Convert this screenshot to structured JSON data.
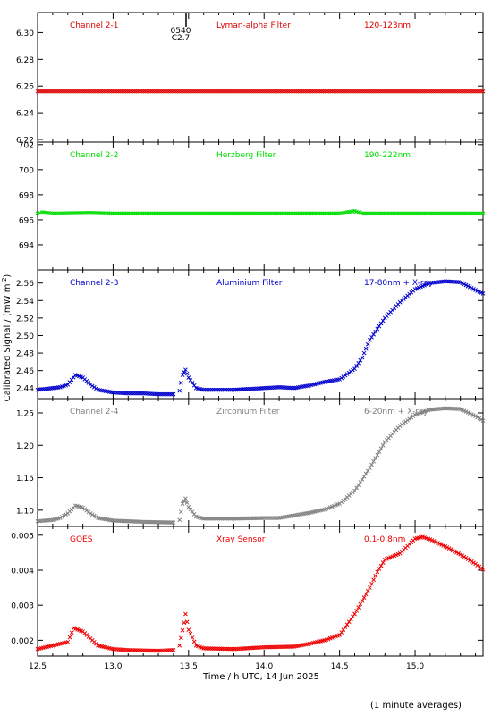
{
  "figure": {
    "ylabel_shared": "Calibrated Signal / (mW m",
    "ylabel_sup": "-2",
    "ylabel_close": ")",
    "xlabel": "Time / h UTC, 14 Jun 2025",
    "footnote": "(1 minute averages)",
    "marker_time": "05:40",
    "marker_top_label": "0540",
    "marker_sub_label": "C2.7"
  },
  "colors": {
    "channel_2_1": "#dd0000",
    "channel_2_2": "#00dd00",
    "channel_2_3": "#0000cc",
    "channel_2_4": "#808080",
    "goes": "#ee0000",
    "axes": "#000000"
  },
  "chart_data": [
    {
      "type": "scatter",
      "panel_label": "Channel 2-1",
      "filter": "Lyman-alpha Filter",
      "band": "120-123nm",
      "color_key": "channel_2_1",
      "ylim": [
        6.218,
        6.315
      ],
      "yticks": [
        6.22,
        6.24,
        6.26,
        6.28,
        6.3
      ],
      "ytick_labels": [
        "6.22",
        "6.24",
        "6.26",
        "6.28",
        "6.30"
      ],
      "xlim": [
        12.5,
        15.45
      ],
      "points": [
        [
          12.5,
          6.256
        ],
        [
          13.0,
          6.256
        ],
        [
          13.5,
          6.256
        ],
        [
          14.0,
          6.256
        ],
        [
          14.5,
          6.256
        ],
        [
          15.0,
          6.256
        ],
        [
          15.45,
          6.256
        ]
      ]
    },
    {
      "type": "scatter",
      "panel_label": "Channel 2-2",
      "filter": "Herzberg Filter",
      "band": "190-222nm",
      "color_key": "channel_2_2",
      "ylim": [
        692.0,
        702.2
      ],
      "yticks": [
        694,
        696,
        698,
        700,
        702
      ],
      "ytick_labels": [
        "694",
        "696",
        "698",
        "700",
        "702"
      ],
      "xlim": [
        12.5,
        15.45
      ],
      "points": [
        [
          12.5,
          696.5
        ],
        [
          12.53,
          696.6
        ],
        [
          12.6,
          696.5
        ],
        [
          12.85,
          696.55
        ],
        [
          13.0,
          696.5
        ],
        [
          13.5,
          696.5
        ],
        [
          14.0,
          696.5
        ],
        [
          14.5,
          696.5
        ],
        [
          14.6,
          696.7
        ],
        [
          14.65,
          696.5
        ],
        [
          15.0,
          696.5
        ],
        [
          15.45,
          696.5
        ]
      ]
    },
    {
      "type": "scatter",
      "panel_label": "Channel 2-3",
      "filter": "Aluminium Filter",
      "band": "17-80nm + X-ray",
      "color_key": "channel_2_3",
      "ylim": [
        2.428,
        2.575
      ],
      "yticks": [
        2.44,
        2.46,
        2.48,
        2.5,
        2.52,
        2.54,
        2.56
      ],
      "ytick_labels": [
        "2.44",
        "2.46",
        "2.48",
        "2.50",
        "2.52",
        "2.54",
        "2.56"
      ],
      "xlim": [
        12.5,
        15.45
      ],
      "points": [
        [
          12.5,
          2.438
        ],
        [
          12.6,
          2.44
        ],
        [
          12.65,
          2.441
        ],
        [
          12.7,
          2.444
        ],
        [
          12.75,
          2.455
        ],
        [
          12.8,
          2.452
        ],
        [
          12.85,
          2.444
        ],
        [
          12.9,
          2.438
        ],
        [
          13.0,
          2.435
        ],
        [
          13.1,
          2.434
        ],
        [
          13.2,
          2.434
        ],
        [
          13.3,
          2.433
        ],
        [
          13.4,
          2.433
        ],
        [
          13.44,
          2.437
        ],
        [
          13.46,
          2.455
        ],
        [
          13.48,
          2.461
        ],
        [
          13.5,
          2.452
        ],
        [
          13.55,
          2.44
        ],
        [
          13.6,
          2.438
        ],
        [
          13.8,
          2.438
        ],
        [
          14.0,
          2.44
        ],
        [
          14.1,
          2.441
        ],
        [
          14.2,
          2.44
        ],
        [
          14.3,
          2.443
        ],
        [
          14.4,
          2.447
        ],
        [
          14.5,
          2.45
        ],
        [
          14.6,
          2.462
        ],
        [
          14.65,
          2.475
        ],
        [
          14.7,
          2.495
        ],
        [
          14.8,
          2.52
        ],
        [
          14.9,
          2.538
        ],
        [
          15.0,
          2.553
        ],
        [
          15.1,
          2.56
        ],
        [
          15.2,
          2.562
        ],
        [
          15.3,
          2.561
        ],
        [
          15.4,
          2.552
        ],
        [
          15.45,
          2.548
        ]
      ]
    },
    {
      "type": "scatter",
      "panel_label": "Channel 2-4",
      "filter": "Zirconium Filter",
      "band": "6-20nm + X-ray",
      "color_key": "channel_2_4",
      "ylim": [
        1.075,
        1.272
      ],
      "yticks": [
        1.1,
        1.15,
        1.2,
        1.25
      ],
      "ytick_labels": [
        "1.10",
        "1.15",
        "1.20",
        "1.25"
      ],
      "xlim": [
        12.5,
        15.45
      ],
      "points": [
        [
          12.5,
          1.083
        ],
        [
          12.6,
          1.085
        ],
        [
          12.65,
          1.088
        ],
        [
          12.7,
          1.095
        ],
        [
          12.75,
          1.107
        ],
        [
          12.8,
          1.104
        ],
        [
          12.85,
          1.095
        ],
        [
          12.9,
          1.088
        ],
        [
          13.0,
          1.084
        ],
        [
          13.2,
          1.082
        ],
        [
          13.4,
          1.081
        ],
        [
          13.44,
          1.085
        ],
        [
          13.46,
          1.11
        ],
        [
          13.48,
          1.118
        ],
        [
          13.5,
          1.105
        ],
        [
          13.55,
          1.09
        ],
        [
          13.6,
          1.087
        ],
        [
          13.8,
          1.087
        ],
        [
          14.0,
          1.088
        ],
        [
          14.1,
          1.088
        ],
        [
          14.2,
          1.092
        ],
        [
          14.3,
          1.096
        ],
        [
          14.4,
          1.101
        ],
        [
          14.5,
          1.11
        ],
        [
          14.6,
          1.13
        ],
        [
          14.7,
          1.165
        ],
        [
          14.8,
          1.205
        ],
        [
          14.9,
          1.23
        ],
        [
          15.0,
          1.247
        ],
        [
          15.1,
          1.255
        ],
        [
          15.2,
          1.257
        ],
        [
          15.3,
          1.256
        ],
        [
          15.4,
          1.245
        ],
        [
          15.45,
          1.238
        ]
      ]
    },
    {
      "type": "scatter",
      "panel_label": "GOES",
      "filter": "Xray Sensor",
      "band": "0.1-0.8nm",
      "color_key": "goes",
      "ylim": [
        0.00155,
        0.00525
      ],
      "yticks": [
        0.002,
        0.003,
        0.004,
        0.005
      ],
      "ytick_labels": [
        "0.002",
        "0.003",
        "0.004",
        "0.005"
      ],
      "xlim": [
        12.5,
        15.45
      ],
      "xticks": [
        12.5,
        13.0,
        13.5,
        14.0,
        14.5,
        15.0
      ],
      "xtick_labels": [
        "12.5",
        "13.0",
        "13.5",
        "14.0",
        "14.5",
        "15.0"
      ],
      "points": [
        [
          12.5,
          0.00175
        ],
        [
          12.6,
          0.00185
        ],
        [
          12.7,
          0.00195
        ],
        [
          12.74,
          0.00235
        ],
        [
          12.8,
          0.00225
        ],
        [
          12.85,
          0.00205
        ],
        [
          12.9,
          0.00185
        ],
        [
          13.0,
          0.00175
        ],
        [
          13.1,
          0.00172
        ],
        [
          13.3,
          0.0017
        ],
        [
          13.4,
          0.00172
        ],
        [
          13.44,
          0.00185
        ],
        [
          13.47,
          0.0025
        ],
        [
          13.48,
          0.00275
        ],
        [
          13.5,
          0.0023
        ],
        [
          13.55,
          0.00185
        ],
        [
          13.6,
          0.00177
        ],
        [
          13.8,
          0.00175
        ],
        [
          14.0,
          0.0018
        ],
        [
          14.2,
          0.00182
        ],
        [
          14.3,
          0.0019
        ],
        [
          14.4,
          0.002
        ],
        [
          14.5,
          0.00215
        ],
        [
          14.6,
          0.00275
        ],
        [
          14.7,
          0.0035
        ],
        [
          14.75,
          0.00395
        ],
        [
          14.8,
          0.0043
        ],
        [
          14.9,
          0.00448
        ],
        [
          15.0,
          0.0049
        ],
        [
          15.05,
          0.00495
        ],
        [
          15.1,
          0.00488
        ],
        [
          15.2,
          0.00468
        ],
        [
          15.3,
          0.00445
        ],
        [
          15.4,
          0.00418
        ],
        [
          15.45,
          0.00402
        ]
      ]
    }
  ]
}
